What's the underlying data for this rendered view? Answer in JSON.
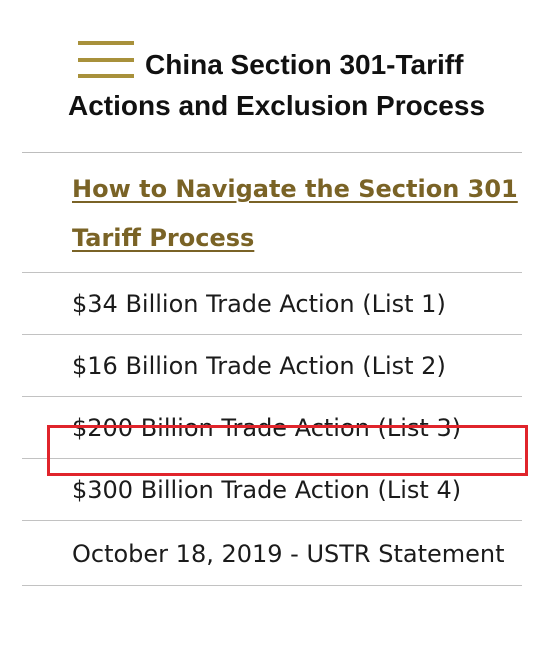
{
  "sidebar": {
    "title": "China Section 301-Tariff Actions and Exclusion Process",
    "menu_icon": "hamburger-menu-icon",
    "accent_color": "#a8913b",
    "items": [
      {
        "label": "How to Navigate the Section 301 Tariff Process",
        "active": true,
        "color": "#7a6326"
      },
      {
        "label": "$34 Billion Trade Action (List 1)"
      },
      {
        "label": "$16 Billion Trade Action (List 2)"
      },
      {
        "label": "$200 Billion Trade Action (List 3)",
        "highlighted": true
      },
      {
        "label": "$300 Billion Trade Action (List 4)"
      },
      {
        "label": "October 18, 2019 - USTR Statement"
      }
    ]
  },
  "highlight_color": "#e0242b"
}
